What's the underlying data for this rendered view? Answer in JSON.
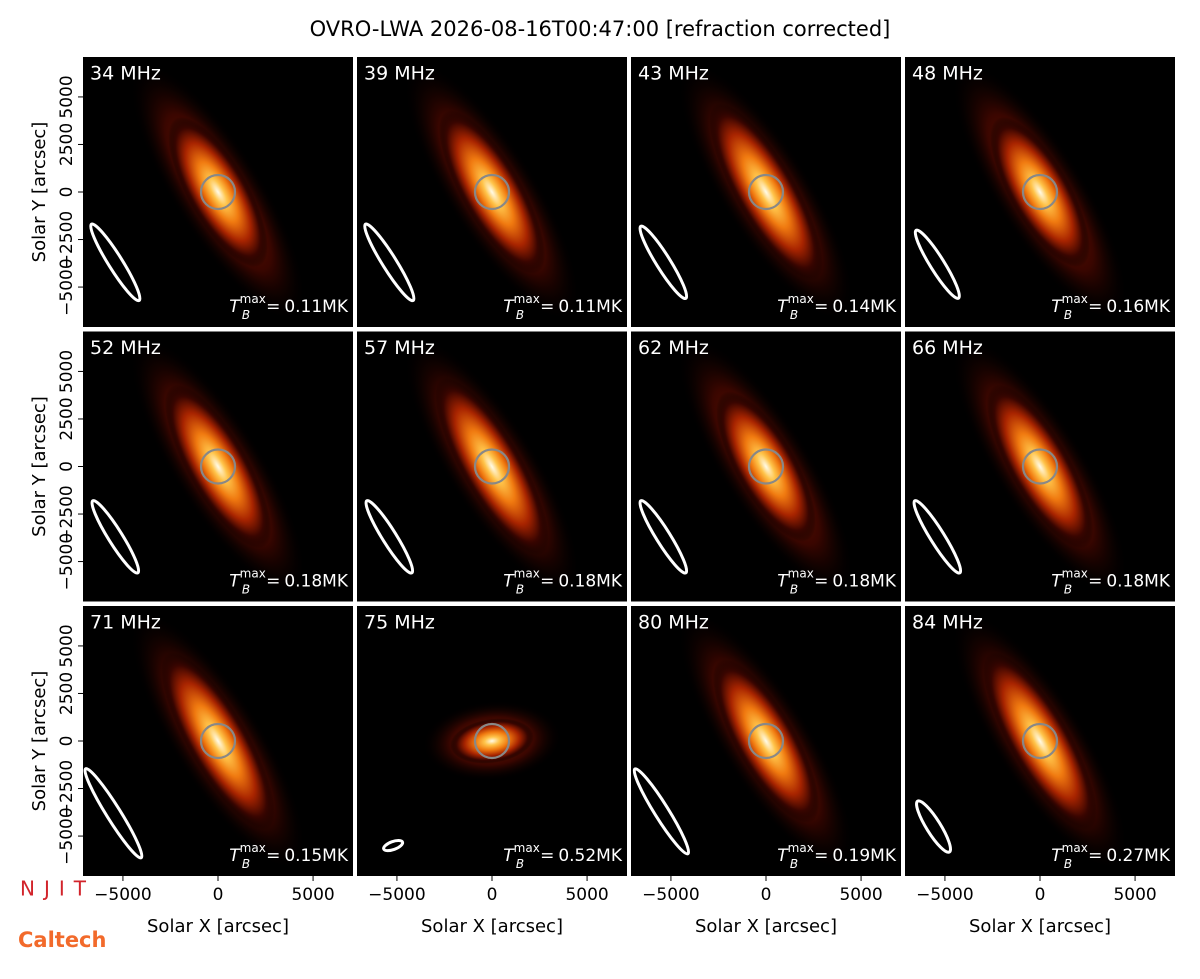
{
  "title": "OVRO-LWA 2026-08-16T00:47:00 [refraction corrected]",
  "axes": {
    "xlabel": "Solar X [arcsec]",
    "ylabel": "Solar Y [arcsec]",
    "xlim": [
      -7100,
      7100
    ],
    "ylim": [
      -7100,
      7100
    ],
    "xticks": [
      {
        "value": -5000,
        "label": "−5000"
      },
      0,
      5000
    ],
    "yticks": [
      {
        "value": -5000,
        "label": "−5000"
      },
      {
        "value": -2500,
        "label": "−2500"
      },
      0,
      2500,
      5000
    ]
  },
  "chart_data": [
    {
      "type": "image",
      "title": "34 MHz",
      "tb": {
        "symbol": "T",
        "sub": "B",
        "sup": "max",
        "relation": "=",
        "value": 0.11,
        "unit": "MK"
      }
    },
    {
      "type": "image",
      "title": "39 MHz",
      "tb": {
        "symbol": "T",
        "sub": "B",
        "sup": "max",
        "relation": "=",
        "value": 0.11,
        "unit": "MK"
      }
    },
    {
      "type": "image",
      "title": "43 MHz",
      "tb": {
        "symbol": "T",
        "sub": "B",
        "sup": "max",
        "relation": "=",
        "value": 0.14,
        "unit": "MK"
      }
    },
    {
      "type": "image",
      "title": "48 MHz",
      "tb": {
        "symbol": "T",
        "sub": "B",
        "sup": "max",
        "relation": "=",
        "value": 0.16,
        "unit": "MK"
      }
    },
    {
      "type": "image",
      "title": "52 MHz",
      "tb": {
        "symbol": "T",
        "sub": "B",
        "sup": "max",
        "relation": "=",
        "value": 0.18,
        "unit": "MK"
      }
    },
    {
      "type": "image",
      "title": "57 MHz",
      "tb": {
        "symbol": "T",
        "sub": "B",
        "sup": "max",
        "relation": "=",
        "value": 0.18,
        "unit": "MK"
      }
    },
    {
      "type": "image",
      "title": "62 MHz",
      "tb": {
        "symbol": "T",
        "sub": "B",
        "sup": "max",
        "relation": "=",
        "value": 0.18,
        "unit": "MK"
      }
    },
    {
      "type": "image",
      "title": "66 MHz",
      "tb": {
        "symbol": "T",
        "sub": "B",
        "sup": "max",
        "relation": "=",
        "value": 0.18,
        "unit": "MK"
      }
    },
    {
      "type": "image",
      "title": "71 MHz",
      "tb": {
        "symbol": "T",
        "sub": "B",
        "sup": "max",
        "relation": "=",
        "value": 0.15,
        "unit": "MK"
      }
    },
    {
      "type": "image",
      "title": "75 MHz",
      "tb": {
        "symbol": "T",
        "sub": "B",
        "sup": "max",
        "relation": "=",
        "value": 0.52,
        "unit": "MK"
      }
    },
    {
      "type": "image",
      "title": "80 MHz",
      "tb": {
        "symbol": "T",
        "sub": "B",
        "sup": "max",
        "relation": "=",
        "value": 0.19,
        "unit": "MK"
      }
    },
    {
      "type": "image",
      "title": "84 MHz",
      "tb": {
        "symbol": "T",
        "sub": "B",
        "sup": "max",
        "relation": "=",
        "value": 0.27,
        "unit": "MK"
      }
    }
  ],
  "logos": [
    "NJIT",
    "Caltech"
  ]
}
